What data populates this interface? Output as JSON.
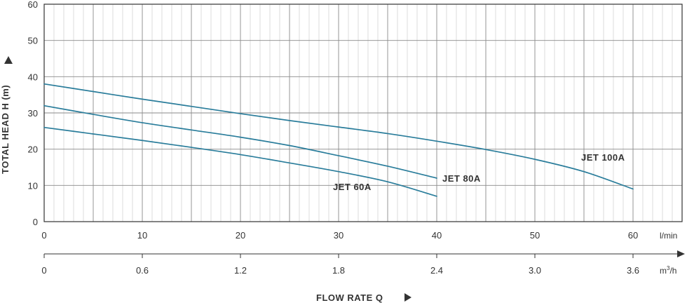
{
  "chart_data": {
    "type": "line",
    "ylabel": "TOTAL HEAD H (m)",
    "xlabel": "FLOW RATE Q",
    "y_ticks": [
      "0",
      "10",
      "20",
      "30",
      "40",
      "50",
      "60"
    ],
    "ylim": [
      0,
      60
    ],
    "xlim": [
      0,
      65
    ],
    "x_ticks_lmin": [
      "0",
      "10",
      "20",
      "30",
      "40",
      "50",
      "60"
    ],
    "x_unit_lmin": "l/min",
    "x_ticks_m3h": [
      "0",
      "0.6",
      "1.2",
      "1.8",
      "2.4",
      "3.0",
      "3.6"
    ],
    "x_unit_m3h_base": "m",
    "x_unit_m3h_sup": "3",
    "x_unit_m3h_tail": "/h",
    "grid": true,
    "series": [
      {
        "name": "JET 100A",
        "color": "#2a7d9b",
        "x": [
          0,
          5,
          10,
          15,
          20,
          25,
          30,
          35,
          40,
          45,
          50,
          55,
          60
        ],
        "y": [
          38,
          35.9,
          33.8,
          31.8,
          29.8,
          27.9,
          26.1,
          24.3,
          22.2,
          19.9,
          17.2,
          13.8,
          9
        ]
      },
      {
        "name": "JET 80A",
        "color": "#2a7d9b",
        "x": [
          0,
          5,
          10,
          15,
          20,
          25,
          30,
          35,
          40
        ],
        "y": [
          32,
          29.6,
          27.3,
          25.3,
          23.3,
          21,
          18.2,
          15.3,
          12
        ]
      },
      {
        "name": "JET 60A",
        "color": "#2a7d9b",
        "x": [
          0,
          5,
          10,
          15,
          20,
          25,
          30,
          35,
          40
        ],
        "y": [
          26,
          24.2,
          22.4,
          20.5,
          18.5,
          16.2,
          13.8,
          11,
          7
        ]
      }
    ]
  }
}
